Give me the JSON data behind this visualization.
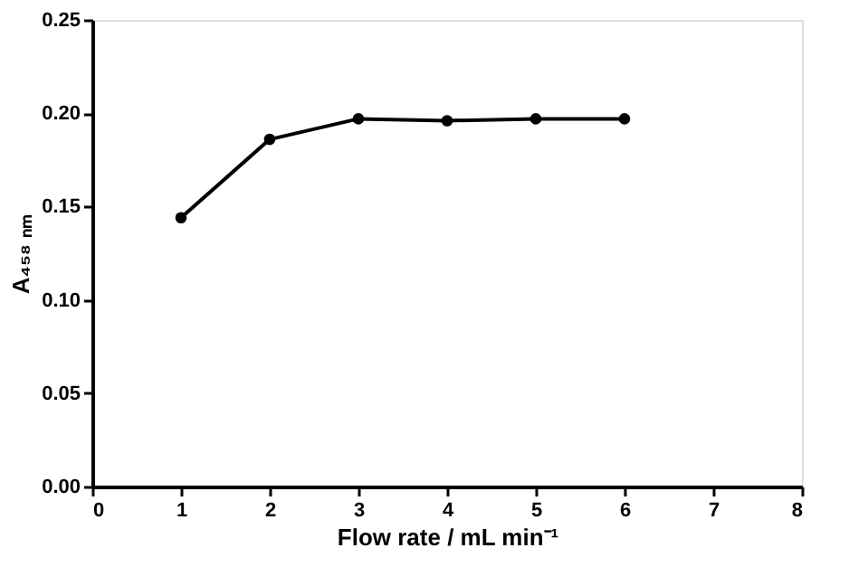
{
  "chart_data": {
    "type": "line",
    "xlabel": "Flow rate / mL min⁻¹",
    "ylabel": "A₄₅₈ ₙₘ",
    "x": [
      1,
      2,
      3,
      4,
      5,
      6
    ],
    "series": [
      {
        "color": "#000000",
        "values": [
          0.144,
          0.186,
          0.197,
          0.196,
          0.197,
          0.197
        ]
      }
    ],
    "xlim": [
      0,
      8
    ],
    "xticks": [
      0,
      1,
      2,
      3,
      4,
      5,
      6,
      7,
      8
    ],
    "ylim": [
      0,
      0.25
    ],
    "yticks": [
      {
        "value": 0,
        "label": "0.00"
      },
      0.05,
      {
        "value": 0.1,
        "label": "0.10"
      },
      0.15,
      {
        "value": 0.2,
        "label": "0.20"
      },
      0.25
    ],
    "marker": "circle",
    "line_style": "solid",
    "grid": false,
    "legend": false
  }
}
